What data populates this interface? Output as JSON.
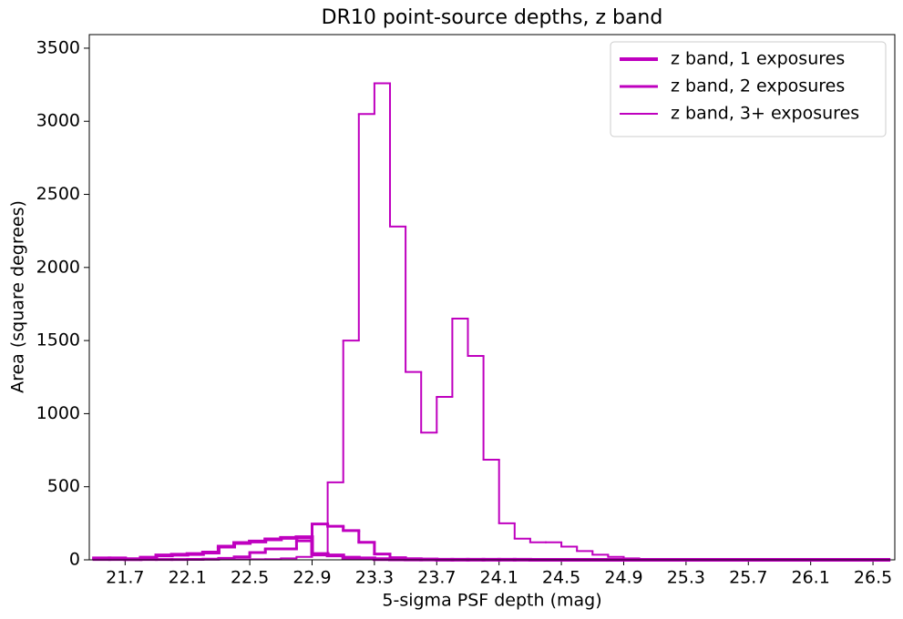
{
  "chart_data": {
    "type": "histogram",
    "title": "DR10 point-source depths, z band",
    "xlabel": "5-sigma PSF depth (mag)",
    "ylabel": "Area (square degrees)",
    "bins": [
      21.5,
      21.6,
      21.7,
      21.8,
      21.9,
      22.0,
      22.1,
      22.2,
      22.3,
      22.4,
      22.5,
      22.6,
      22.7,
      22.8,
      22.9,
      23.0,
      23.1,
      23.2,
      23.3,
      23.4,
      23.5,
      23.6,
      23.7,
      23.8,
      23.9,
      24.0,
      24.1,
      24.2,
      24.3,
      24.4,
      24.5,
      24.6,
      24.7,
      24.8,
      24.9,
      25.0,
      25.1,
      25.2,
      25.3,
      25.4,
      25.5,
      25.6,
      25.7,
      25.8,
      25.9,
      26.0,
      26.1,
      26.2,
      26.3,
      26.4,
      26.5,
      26.6
    ],
    "series": [
      {
        "name": "z band, 1 exposures",
        "color": "#bf00bf",
        "linewidth": 4,
        "values": [
          10,
          10,
          5,
          15,
          30,
          35,
          40,
          50,
          90,
          115,
          125,
          140,
          150,
          155,
          40,
          30,
          15,
          10,
          5,
          3,
          2,
          2,
          1,
          1,
          1,
          1,
          1,
          1,
          0,
          0,
          0,
          0,
          0,
          0,
          0,
          0,
          0,
          0,
          0,
          0,
          0,
          0,
          0,
          0,
          0,
          0,
          0,
          0,
          0,
          0,
          0
        ]
      },
      {
        "name": "z band, 2 exposures",
        "color": "#bf00bf",
        "linewidth": 3,
        "values": [
          2,
          2,
          2,
          2,
          2,
          2,
          3,
          5,
          10,
          20,
          50,
          75,
          75,
          130,
          245,
          230,
          200,
          120,
          40,
          15,
          8,
          5,
          3,
          2,
          2,
          2,
          1,
          1,
          1,
          1,
          0,
          0,
          0,
          0,
          0,
          0,
          0,
          0,
          0,
          0,
          0,
          0,
          0,
          0,
          0,
          0,
          0,
          0,
          0,
          0,
          0
        ]
      },
      {
        "name": "z band, 3+ exposures",
        "color": "#bf00bf",
        "linewidth": 2,
        "values": [
          2,
          2,
          2,
          2,
          2,
          2,
          2,
          2,
          3,
          3,
          4,
          5,
          10,
          20,
          30,
          530,
          1500,
          3050,
          3260,
          2280,
          1285,
          870,
          1115,
          1650,
          1395,
          685,
          250,
          145,
          120,
          120,
          90,
          60,
          35,
          20,
          10,
          6,
          5,
          4,
          3,
          3,
          2,
          2,
          2,
          2,
          1,
          1,
          1,
          1,
          1,
          1,
          1
        ]
      }
    ],
    "xlim": [
      21.47,
      26.64
    ],
    "xticks": [
      21.7,
      22.1,
      22.5,
      22.9,
      23.3,
      23.7,
      24.1,
      24.5,
      24.9,
      25.3,
      25.7,
      26.1,
      26.5
    ],
    "ylim": [
      0,
      3593
    ],
    "yticks": [
      0,
      500,
      1000,
      1500,
      2000,
      2500,
      3000,
      3500
    ],
    "legend": "upper right"
  }
}
